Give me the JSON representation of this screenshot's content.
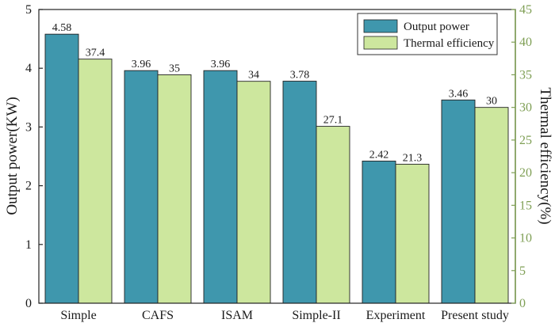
{
  "chart_data": {
    "type": "bar",
    "categories": [
      "Simple",
      "CAFS",
      "ISAM",
      "Simple-II",
      "Experiment",
      "Present study"
    ],
    "series": [
      {
        "name": "Output power",
        "axis": "left",
        "values": [
          4.58,
          3.96,
          3.96,
          3.78,
          2.42,
          3.46
        ],
        "labels": [
          "4.58",
          "3.96",
          "3.96",
          "3.78",
          "2.42",
          "3.46"
        ],
        "color": "#3f97ad"
      },
      {
        "name": "Thermal efficiency",
        "axis": "right",
        "values": [
          37.4,
          35,
          34,
          27.1,
          21.3,
          30
        ],
        "labels": [
          "37.4",
          "35",
          "34",
          "27.1",
          "21.3",
          "30"
        ],
        "color": "#cde79e"
      }
    ],
    "ylabel": "Output power(KW)",
    "y2label": "Thermal efficiency(%)",
    "ylim": [
      0,
      5
    ],
    "y2lim": [
      0,
      45
    ],
    "yticks": [
      "0",
      "1",
      "2",
      "3",
      "4",
      "5"
    ],
    "y2ticks": [
      "0",
      "5",
      "10",
      "15",
      "20",
      "25",
      "30",
      "35",
      "40",
      "45"
    ],
    "right_axis_color": "#7f9f55",
    "grid": false,
    "legend_position": "top-right"
  }
}
